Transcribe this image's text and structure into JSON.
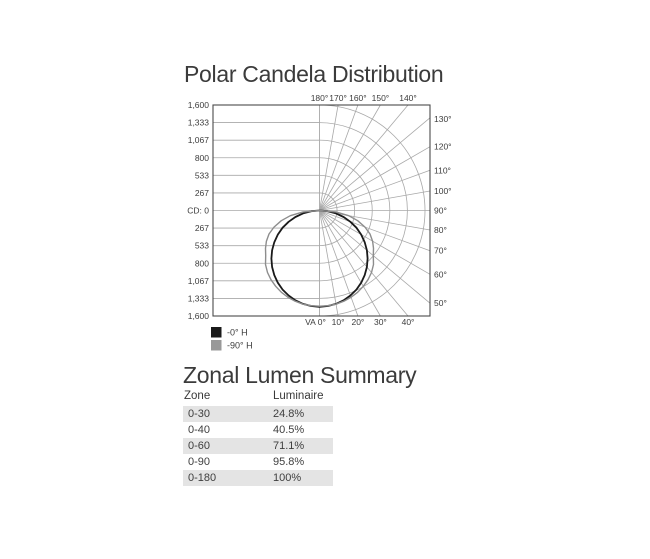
{
  "page": {
    "background_color": "#ffffff",
    "text_color": "#3c3c3c"
  },
  "chart_data": [
    {
      "type": "polar",
      "title": "Polar Candela Distribution",
      "units": "candela",
      "radial_axis": {
        "max": 1600,
        "rings": [
          267,
          533,
          800,
          1067,
          1333,
          1600
        ],
        "tick_labels": [
          "1,600",
          "1,333",
          "1,067",
          "800",
          "533",
          "267"
        ],
        "center_label": "CD: 0"
      },
      "angle_labels": {
        "top": [
          {
            "label": "180°",
            "angle": 180
          },
          {
            "label": "170°",
            "angle": 170
          },
          {
            "label": "160°",
            "angle": 160
          },
          {
            "label": "150°",
            "angle": 150
          },
          {
            "label": "140°",
            "angle": 140
          }
        ],
        "right": [
          {
            "label": "130°",
            "angle": 130
          },
          {
            "label": "120°",
            "angle": 120
          },
          {
            "label": "110°",
            "angle": 110
          },
          {
            "label": "100°",
            "angle": 100
          },
          {
            "label": "90°",
            "angle": 90
          },
          {
            "label": "80°",
            "angle": 80
          },
          {
            "label": "70°",
            "angle": 70
          },
          {
            "label": "60°",
            "angle": 60
          },
          {
            "label": "50°",
            "angle": 50
          }
        ],
        "bottom": [
          {
            "label": "VA 0°",
            "angle": 0
          },
          {
            "label": "10°",
            "angle": 10
          },
          {
            "label": "20°",
            "angle": 20
          },
          {
            "label": "30°",
            "angle": 30
          },
          {
            "label": "40°",
            "angle": 40
          }
        ]
      },
      "series": [
        {
          "name": "-0° H",
          "color": "#1a1a1a",
          "stroke_width": 1.8,
          "angles_deg": [
            0,
            5,
            10,
            15,
            20,
            25,
            30,
            35,
            40,
            45,
            50,
            55,
            60,
            65,
            70,
            75,
            80,
            85,
            90
          ],
          "candela": [
            1460,
            1454,
            1438,
            1410,
            1372,
            1323,
            1264,
            1196,
            1118,
            1032,
            939,
            837,
            730,
            617,
            499,
            378,
            254,
            127,
            0
          ]
        },
        {
          "name": "-90° H",
          "color": "#8d8d8d",
          "stroke_width": 1.4,
          "angles_deg": [
            0,
            5,
            10,
            15,
            20,
            25,
            30,
            35,
            40,
            45,
            50,
            55,
            60,
            65,
            70,
            75,
            80,
            85,
            90
          ],
          "candela": [
            1452,
            1450,
            1443,
            1424,
            1400,
            1368,
            1328,
            1282,
            1228,
            1158,
            1065,
            1000,
            930,
            845,
            735,
            600,
            450,
            250,
            0
          ]
        }
      ],
      "legend": {
        "position": "bottom-left",
        "items": [
          {
            "label": "-0° H",
            "color": "#1a1a1a"
          },
          {
            "label": "-90° H",
            "color": "#999999"
          }
        ]
      },
      "grid": {
        "color": "#a8a8a8",
        "frame_color": "#4a4a4a",
        "angle_step_deg": 10
      },
      "text_color": "#3c3c3c"
    },
    {
      "type": "table",
      "title": "Zonal Lumen Summary",
      "columns": [
        "Zone",
        "Luminaire"
      ],
      "rows": [
        [
          "0-30",
          "24.8%"
        ],
        [
          "0-40",
          "40.5%"
        ],
        [
          "0-60",
          "71.1%"
        ],
        [
          "0-90",
          "95.8%"
        ],
        [
          "0-180",
          "100%"
        ]
      ],
      "row_shading_color": "#e4e4e4"
    }
  ]
}
